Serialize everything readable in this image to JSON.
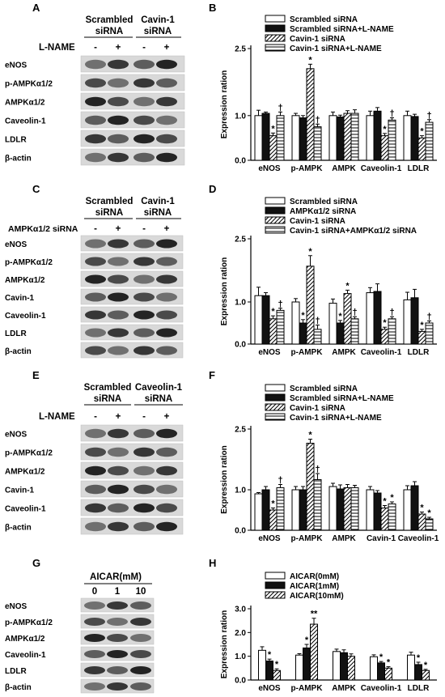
{
  "panels": {
    "A": {
      "label": "A",
      "groups": [
        {
          "line1": "Scrambled",
          "line2": "siRNA"
        },
        {
          "line1": "Cavin-1",
          "line2": "siRNA"
        }
      ],
      "treatment": "L-NAME",
      "signs": [
        "-",
        "+",
        "-",
        "+"
      ],
      "rows": [
        "eNOS",
        "p-AMPKα1/2",
        "AMPKα1/2",
        "Caveolin-1",
        "LDLR",
        "β-actin"
      ]
    },
    "C": {
      "label": "C",
      "groups": [
        {
          "line1": "Scrambled",
          "line2": "siRNA"
        },
        {
          "line1": "Cavin-1",
          "line2": "siRNA"
        }
      ],
      "treatment": "AMPKα1/2 siRNA",
      "signs": [
        "-",
        "+",
        "-",
        "+"
      ],
      "rows": [
        "eNOS",
        "p-AMPKα1/2",
        "AMPKα1/2",
        "Cavin-1",
        "Caveolin-1",
        "LDLR",
        "β-actin"
      ]
    },
    "E": {
      "label": "E",
      "groups": [
        {
          "line1": "Scrambled",
          "line2": "siRNA"
        },
        {
          "line1": "Caveolin-1",
          "line2": "siRNA"
        }
      ],
      "treatment": "L-NAME",
      "signs": [
        "-",
        "+",
        "-",
        "+"
      ],
      "rows": [
        "eNOS",
        "p-AMPKα1/2",
        "AMPKα1/2",
        "Cavin-1",
        "Caveolin-1",
        "β-actin"
      ]
    },
    "G": {
      "label": "G",
      "header": "AICAR(mM)",
      "doses": [
        "0",
        "1",
        "10"
      ],
      "rows": [
        "eNOS",
        "p-AMPKα1/2",
        "AMPKα1/2",
        "Caveolin-1",
        "LDLR",
        "β-actin"
      ]
    }
  },
  "colors": {
    "ink": "#000000",
    "white_fill": "#ffffff",
    "black_fill": "#111111"
  },
  "chart_data": [
    {
      "label": "B",
      "type": "bar",
      "ylabel": "Expression ration",
      "ylim": [
        0,
        2.5
      ],
      "yticks": [
        "0.0",
        "1.0",
        "2.5"
      ],
      "ytick_values": [
        0,
        1,
        2.5
      ],
      "categories": [
        "eNOS",
        "p-AMPK",
        "AMPK",
        "Caveolin-1",
        "LDLR"
      ],
      "series": [
        {
          "name": "Scrambled siRNA",
          "pattern": "white",
          "values": [
            1.0,
            1.0,
            1.0,
            1.0,
            1.0
          ],
          "errors": [
            0.12,
            0.05,
            0.08,
            0.1,
            0.1
          ]
        },
        {
          "name": "Scrambled siRNA+L-NAME",
          "pattern": "black",
          "values": [
            1.05,
            0.95,
            0.97,
            1.1,
            0.98
          ],
          "errors": [
            0.03,
            0.05,
            0.04,
            0.08,
            0.05
          ]
        },
        {
          "name": "Cavin-1 siRNA",
          "pattern": "diag",
          "values": [
            0.55,
            2.05,
            1.05,
            0.55,
            0.5
          ],
          "errors": [
            0.06,
            0.1,
            0.06,
            0.05,
            0.05
          ]
        },
        {
          "name": "Cavin-1 siRNA+L-NAME",
          "pattern": "horiz",
          "values": [
            1.0,
            0.75,
            1.05,
            0.9,
            0.85
          ],
          "errors": [
            0.08,
            0.06,
            0.08,
            0.05,
            0.06
          ]
        }
      ],
      "annotations": [
        {
          "cat": 0,
          "series": 2,
          "text": "*"
        },
        {
          "cat": 0,
          "series": 3,
          "text": "†"
        },
        {
          "cat": 1,
          "series": 2,
          "text": "*"
        },
        {
          "cat": 1,
          "series": 3,
          "text": "†"
        },
        {
          "cat": 3,
          "series": 2,
          "text": "*"
        },
        {
          "cat": 3,
          "series": 3,
          "text": "†"
        },
        {
          "cat": 4,
          "series": 2,
          "text": "*"
        },
        {
          "cat": 4,
          "series": 3,
          "text": "†"
        }
      ]
    },
    {
      "label": "D",
      "type": "bar",
      "ylabel": "Expression ration",
      "ylim": [
        0,
        2.5
      ],
      "yticks": [
        "0.0",
        "1.0",
        "2.5"
      ],
      "ytick_values": [
        0,
        1,
        2.5
      ],
      "categories": [
        "eNOS",
        "p-AMPK",
        "AMPK",
        "Caveolin-1",
        "LDLR"
      ],
      "series": [
        {
          "name": "Scrambled siRNA",
          "pattern": "white",
          "values": [
            1.15,
            1.0,
            0.97,
            1.22,
            1.05
          ],
          "errors": [
            0.2,
            0.08,
            0.1,
            0.12,
            0.18
          ]
        },
        {
          "name": "AMPKα1/2 siRNA",
          "pattern": "black",
          "values": [
            1.15,
            0.5,
            0.5,
            1.25,
            1.1
          ],
          "errors": [
            0.07,
            0.08,
            0.06,
            0.18,
            0.2
          ]
        },
        {
          "name": "Cavin-1 siRNA",
          "pattern": "diag",
          "values": [
            0.6,
            1.85,
            1.2,
            0.35,
            0.3
          ],
          "errors": [
            0.07,
            0.25,
            0.08,
            0.05,
            0.05
          ]
        },
        {
          "name": "Cavin-1 siRNA+AMPKα1/2 siRNA",
          "pattern": "horiz",
          "values": [
            0.8,
            0.35,
            0.6,
            0.6,
            0.5
          ],
          "errors": [
            0.05,
            0.1,
            0.05,
            0.05,
            0.05
          ]
        }
      ],
      "annotations": [
        {
          "cat": 0,
          "series": 2,
          "text": "*"
        },
        {
          "cat": 0,
          "series": 3,
          "text": "†"
        },
        {
          "cat": 1,
          "series": 1,
          "text": "*"
        },
        {
          "cat": 1,
          "series": 2,
          "text": "*"
        },
        {
          "cat": 1,
          "series": 3,
          "text": "†"
        },
        {
          "cat": 2,
          "series": 1,
          "text": "*"
        },
        {
          "cat": 2,
          "series": 2,
          "text": "*"
        },
        {
          "cat": 2,
          "series": 3,
          "text": "†"
        },
        {
          "cat": 3,
          "series": 2,
          "text": "*"
        },
        {
          "cat": 3,
          "series": 3,
          "text": "†"
        },
        {
          "cat": 4,
          "series": 2,
          "text": "*"
        },
        {
          "cat": 4,
          "series": 3,
          "text": "†"
        }
      ]
    },
    {
      "label": "F",
      "type": "bar",
      "ylabel": "Expression ration",
      "ylim": [
        0,
        2.5
      ],
      "yticks": [
        "0.0",
        "1.0",
        "2.5"
      ],
      "ytick_values": [
        0,
        1,
        2.5
      ],
      "categories": [
        "eNOS",
        "p-AMPK",
        "AMPK",
        "Cavin-1",
        "Caveolin-1"
      ],
      "series": [
        {
          "name": "Scrambled siRNA",
          "pattern": "white",
          "values": [
            0.9,
            1.0,
            1.08,
            1.0,
            1.0
          ],
          "errors": [
            0.03,
            0.08,
            0.08,
            0.08,
            0.1
          ]
        },
        {
          "name": "Scrambled siRNA+L-NAME",
          "pattern": "black",
          "values": [
            1.0,
            1.0,
            1.02,
            0.92,
            1.1
          ],
          "errors": [
            0.08,
            0.08,
            0.1,
            0.06,
            0.1
          ]
        },
        {
          "name": "Cavin-1 siRNA",
          "pattern": "diag",
          "values": [
            0.5,
            2.15,
            1.05,
            0.55,
            0.4
          ],
          "errors": [
            0.05,
            0.1,
            0.08,
            0.06,
            0.05
          ]
        },
        {
          "name": "Cavin-1 siRNA+L-NAME",
          "pattern": "horiz",
          "values": [
            1.05,
            1.25,
            1.05,
            0.65,
            0.28
          ],
          "errors": [
            0.08,
            0.15,
            0.06,
            0.05,
            0.04
          ]
        }
      ],
      "annotations": [
        {
          "cat": 0,
          "series": 2,
          "text": "*"
        },
        {
          "cat": 0,
          "series": 3,
          "text": "†"
        },
        {
          "cat": 1,
          "series": 2,
          "text": "*"
        },
        {
          "cat": 1,
          "series": 3,
          "text": "†"
        },
        {
          "cat": 3,
          "series": 2,
          "text": "*"
        },
        {
          "cat": 3,
          "series": 3,
          "text": "*"
        },
        {
          "cat": 4,
          "series": 2,
          "text": "*"
        },
        {
          "cat": 4,
          "series": 3,
          "text": "*"
        }
      ]
    },
    {
      "label": "H",
      "type": "bar",
      "ylabel": "Expression ration",
      "ylim": [
        0,
        3.0
      ],
      "yticks": [
        "0.0",
        "1.0",
        "2.0",
        "3.0"
      ],
      "ytick_values": [
        0,
        1,
        2,
        3
      ],
      "categories": [
        "eNOS",
        "p-AMPK",
        "AMPK",
        "Caveolin-1",
        "LDLR"
      ],
      "series": [
        {
          "name": "AICAR(0mM)",
          "pattern": "white",
          "values": [
            1.25,
            1.05,
            1.2,
            0.98,
            1.05
          ],
          "errors": [
            0.15,
            0.06,
            0.1,
            0.08,
            0.12
          ]
        },
        {
          "name": "AICAR(1mM)",
          "pattern": "black",
          "values": [
            0.8,
            1.35,
            1.15,
            0.72,
            0.65
          ],
          "errors": [
            0.08,
            0.15,
            0.12,
            0.06,
            0.1
          ]
        },
        {
          "name": "AICAR(10mM)",
          "pattern": "diag",
          "values": [
            0.4,
            2.35,
            1.0,
            0.5,
            0.4
          ],
          "errors": [
            0.07,
            0.25,
            0.1,
            0.06,
            0.05
          ]
        }
      ],
      "annotations": [
        {
          "cat": 0,
          "series": 1,
          "text": "*"
        },
        {
          "cat": 0,
          "series": 2,
          "text": "*"
        },
        {
          "cat": 1,
          "series": 1,
          "text": "*"
        },
        {
          "cat": 1,
          "series": 2,
          "text": "**"
        },
        {
          "cat": 3,
          "series": 1,
          "text": "*"
        },
        {
          "cat": 3,
          "series": 2,
          "text": "*"
        },
        {
          "cat": 4,
          "series": 1,
          "text": "*"
        },
        {
          "cat": 4,
          "series": 2,
          "text": "*"
        }
      ]
    }
  ]
}
